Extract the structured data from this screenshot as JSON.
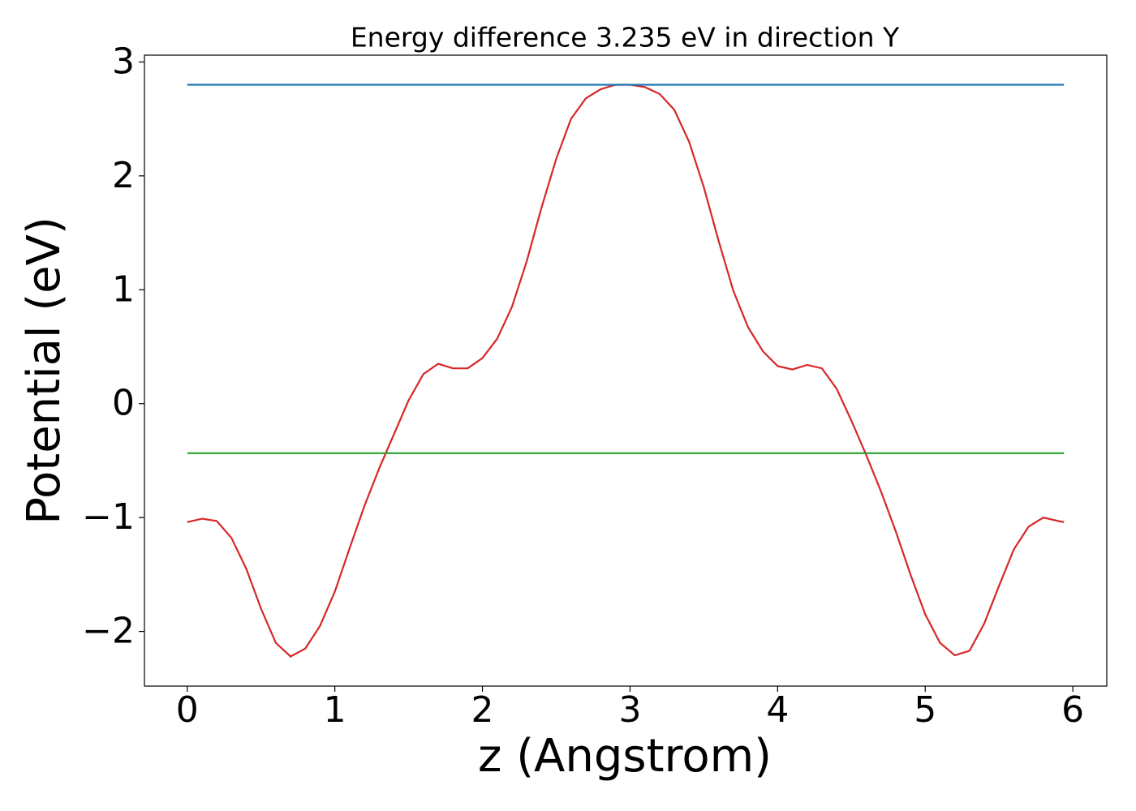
{
  "chart_data": {
    "type": "line",
    "title": "Energy difference 3.235 eV in direction Y",
    "x_label": "z (Angstrom)",
    "y_label": "Potential (eV)",
    "xlim": [
      -0.29,
      6.23
    ],
    "ylim": [
      -2.48,
      3.06
    ],
    "xticks": [
      0,
      1,
      2,
      3,
      4,
      5,
      6
    ],
    "yticks": [
      {
        "value": -2,
        "label": "−2"
      },
      {
        "value": -1,
        "label": "−1"
      },
      0,
      1,
      2,
      3
    ],
    "grid": false,
    "series": [
      {
        "color": "#d62728",
        "x": [
          0,
          0.1,
          0.2,
          0.3,
          0.4,
          0.5,
          0.6,
          0.7,
          0.8,
          0.9,
          1.0,
          1.1,
          1.2,
          1.3,
          1.4,
          1.5,
          1.6,
          1.7,
          1.8,
          1.9,
          2.0,
          2.1,
          2.2,
          2.3,
          2.4,
          2.5,
          2.6,
          2.7,
          2.8,
          2.9,
          3.0,
          3.1,
          3.2,
          3.3,
          3.4,
          3.5,
          3.6,
          3.7,
          3.8,
          3.9,
          4.0,
          4.1,
          4.2,
          4.3,
          4.4,
          4.5,
          4.6,
          4.7,
          4.8,
          4.9,
          5.0,
          5.1,
          5.2,
          5.3,
          5.4,
          5.5,
          5.6,
          5.7,
          5.8,
          5.9,
          5.94
        ],
        "values": [
          -1.04,
          -1.01,
          -1.03,
          -1.18,
          -1.45,
          -1.8,
          -2.1,
          -2.22,
          -2.15,
          -1.95,
          -1.65,
          -1.27,
          -0.9,
          -0.57,
          -0.27,
          0.03,
          0.26,
          0.35,
          0.31,
          0.31,
          0.4,
          0.57,
          0.85,
          1.25,
          1.72,
          2.15,
          2.5,
          2.68,
          2.76,
          2.8,
          2.8,
          2.78,
          2.72,
          2.58,
          2.3,
          1.9,
          1.43,
          0.99,
          0.67,
          0.46,
          0.33,
          0.3,
          0.34,
          0.31,
          0.13,
          -0.15,
          -0.45,
          -0.77,
          -1.12,
          -1.5,
          -1.85,
          -2.1,
          -2.21,
          -2.17,
          -1.93,
          -1.6,
          -1.28,
          -1.08,
          -1.0,
          -1.03,
          -1.04
        ]
      },
      {
        "color": "#1f77b4",
        "x": [
          0,
          5.94
        ],
        "values": [
          2.8,
          2.8
        ]
      },
      {
        "color": "#2ca02c",
        "x": [
          0,
          5.94
        ],
        "values": [
          -0.435,
          -0.435
        ]
      }
    ]
  }
}
